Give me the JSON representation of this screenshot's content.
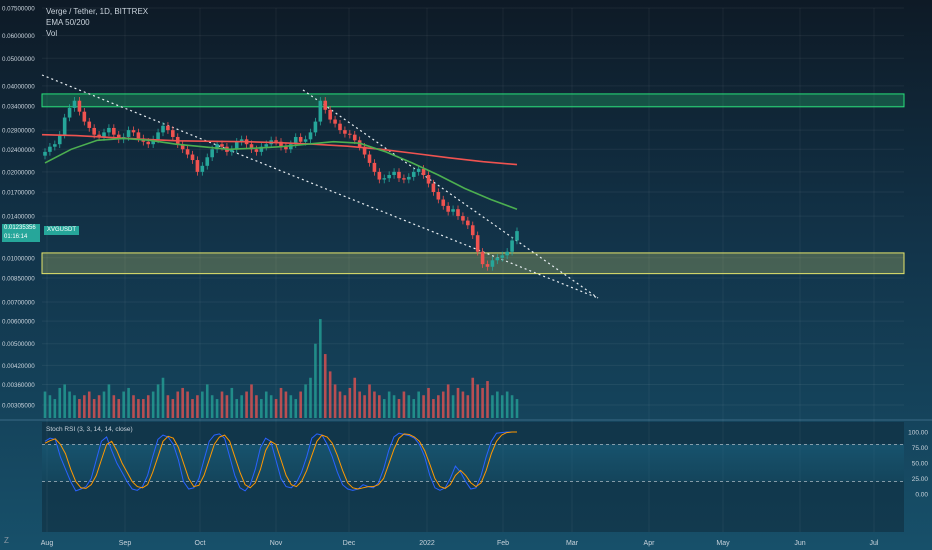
{
  "chart_data": {
    "type": "candlestick",
    "legend": {
      "symbol_line": "Verge / Tether, 1D, BITTREX",
      "ema_label": "EMA 50/200",
      "vol_label": "Vol"
    },
    "last_price": {
      "value": "0.01235356",
      "countdown": "01:16:14",
      "ticker": "XVGUSDT"
    },
    "price_axis_ticks": [
      "0.07500000",
      "0.06000000",
      "0.05000000",
      "0.04000000",
      "0.03400000",
      "0.02800000",
      "0.02400000",
      "0.02000000",
      "0.01700000",
      "0.01400000",
      "0.01000000",
      "0.00850000",
      "0.00700000",
      "0.00600000",
      "0.00500000",
      "0.00420000",
      "0.00360000",
      "0.00305000"
    ],
    "rsi_axis_ticks": [
      "100.00",
      "75.00",
      "50.00",
      "25.00",
      "0.00"
    ],
    "x_axis_ticks": [
      "Aug",
      "Sep",
      "Oct",
      "Nov",
      "Dec",
      "2022",
      "Feb",
      "Mar",
      "Apr",
      "May",
      "Jun",
      "Jul"
    ],
    "rsi_label": "Stoch RSI (3, 3, 14, 14, close)",
    "logo": "Z",
    "zones": [
      {
        "name": "resistance",
        "from": 0.0338,
        "to": 0.0375,
        "color": "#27e07a"
      },
      {
        "name": "support",
        "from": 0.0088,
        "to": 0.0104,
        "color": "#e5e56b"
      }
    ],
    "ema50": {
      "color": "#4caf50",
      "values": [
        0.0215,
        0.024,
        0.0258,
        0.0262,
        0.0258,
        0.025,
        0.0245,
        0.024,
        0.0242,
        0.0245,
        0.025,
        0.0255,
        0.0252,
        0.0235,
        0.0215,
        0.0195,
        0.0175,
        0.016,
        0.0148
      ]
    },
    "ema200": {
      "color": "#ef5350",
      "values": [
        0.027,
        0.0268,
        0.0264,
        0.026,
        0.0257,
        0.0256,
        0.0255,
        0.0253,
        0.025,
        0.0246,
        0.024,
        0.0232,
        0.0224,
        0.0217,
        0.0212
      ]
    },
    "closes": [
      0.0235,
      0.0245,
      0.025,
      0.027,
      0.031,
      0.0335,
      0.0355,
      0.0325,
      0.03,
      0.0285,
      0.027,
      0.0265,
      0.0275,
      0.0285,
      0.027,
      0.026,
      0.0265,
      0.028,
      0.0275,
      0.0262,
      0.0255,
      0.025,
      0.026,
      0.0275,
      0.029,
      0.028,
      0.0265,
      0.025,
      0.024,
      0.023,
      0.022,
      0.02,
      0.021,
      0.0225,
      0.024,
      0.025,
      0.0245,
      0.0235,
      0.024,
      0.0255,
      0.026,
      0.025,
      0.024,
      0.0235,
      0.0245,
      0.025,
      0.0258,
      0.0255,
      0.0245,
      0.024,
      0.025,
      0.0265,
      0.0255,
      0.026,
      0.0275,
      0.03,
      0.0355,
      0.033,
      0.0305,
      0.0295,
      0.028,
      0.0272,
      0.027,
      0.0258,
      0.0245,
      0.023,
      0.0215,
      0.02,
      0.0188,
      0.019,
      0.0195,
      0.02,
      0.019,
      0.0188,
      0.0192,
      0.02,
      0.0205,
      0.0195,
      0.0182,
      0.017,
      0.016,
      0.0152,
      0.0145,
      0.0148,
      0.014,
      0.0135,
      0.013,
      0.012,
      0.0105,
      0.0095,
      0.0093,
      0.0098,
      0.01,
      0.0102,
      0.0105,
      0.0115,
      0.0124
    ],
    "volume": [
      0.0034,
      0.0033,
      0.0032,
      0.0035,
      0.0036,
      0.0034,
      0.0033,
      0.0032,
      0.0033,
      0.0034,
      0.0032,
      0.0033,
      0.0034,
      0.0036,
      0.0033,
      0.0032,
      0.0034,
      0.0035,
      0.0033,
      0.0032,
      0.0032,
      0.0033,
      0.0034,
      0.0036,
      0.0038,
      0.0033,
      0.0032,
      0.0034,
      0.0035,
      0.0034,
      0.0032,
      0.0033,
      0.0034,
      0.0036,
      0.0033,
      0.0032,
      0.0034,
      0.0033,
      0.0035,
      0.0032,
      0.0033,
      0.0034,
      0.0036,
      0.0033,
      0.0032,
      0.0034,
      0.0033,
      0.0032,
      0.0035,
      0.0034,
      0.0033,
      0.0032,
      0.0034,
      0.0036,
      0.0038,
      0.005,
      0.0061,
      0.0046,
      0.004,
      0.0036,
      0.0034,
      0.0033,
      0.0035,
      0.0038,
      0.0034,
      0.0033,
      0.0036,
      0.0034,
      0.0033,
      0.0032,
      0.0034,
      0.0033,
      0.0032,
      0.0034,
      0.0033,
      0.0032,
      0.0034,
      0.0033,
      0.0035,
      0.0032,
      0.0033,
      0.0034,
      0.0036,
      0.0033,
      0.0035,
      0.0034,
      0.0033,
      0.0038,
      0.0036,
      0.0035,
      0.0037,
      0.0033,
      0.0034,
      0.0033,
      0.0034,
      0.0033,
      0.0032
    ],
    "stoch_k": [
      85,
      90,
      88,
      60,
      40,
      20,
      5,
      8,
      12,
      25,
      55,
      85,
      92,
      70,
      50,
      35,
      20,
      8,
      6,
      12,
      30,
      60,
      88,
      95,
      92,
      80,
      55,
      20,
      8,
      10,
      25,
      55,
      85,
      95,
      97,
      90,
      60,
      30,
      10,
      5,
      15,
      40,
      75,
      90,
      85,
      55,
      25,
      12,
      10,
      18,
      35,
      60,
      90,
      97,
      95,
      80,
      60,
      35,
      15,
      8,
      6,
      8,
      15,
      12,
      10,
      18,
      40,
      70,
      92,
      98,
      96,
      94,
      90,
      80,
      60,
      30,
      10,
      6,
      10,
      25,
      45,
      35,
      20,
      8,
      10,
      30,
      60,
      85,
      98,
      99,
      100,
      100,
      100
    ],
    "stoch_d": [
      82,
      86,
      89,
      80,
      65,
      40,
      20,
      10,
      9,
      15,
      30,
      55,
      80,
      85,
      70,
      50,
      35,
      20,
      12,
      10,
      15,
      35,
      60,
      85,
      93,
      90,
      75,
      50,
      25,
      12,
      14,
      30,
      55,
      80,
      92,
      95,
      85,
      60,
      35,
      15,
      10,
      18,
      40,
      70,
      85,
      80,
      55,
      30,
      15,
      12,
      20,
      38,
      62,
      85,
      95,
      92,
      82,
      62,
      38,
      18,
      10,
      8,
      10,
      12,
      12,
      15,
      25,
      48,
      72,
      90,
      97,
      96,
      92,
      85,
      70,
      48,
      25,
      12,
      9,
      15,
      30,
      38,
      30,
      18,
      12,
      18,
      38,
      65,
      85,
      95,
      99,
      100,
      100
    ]
  }
}
